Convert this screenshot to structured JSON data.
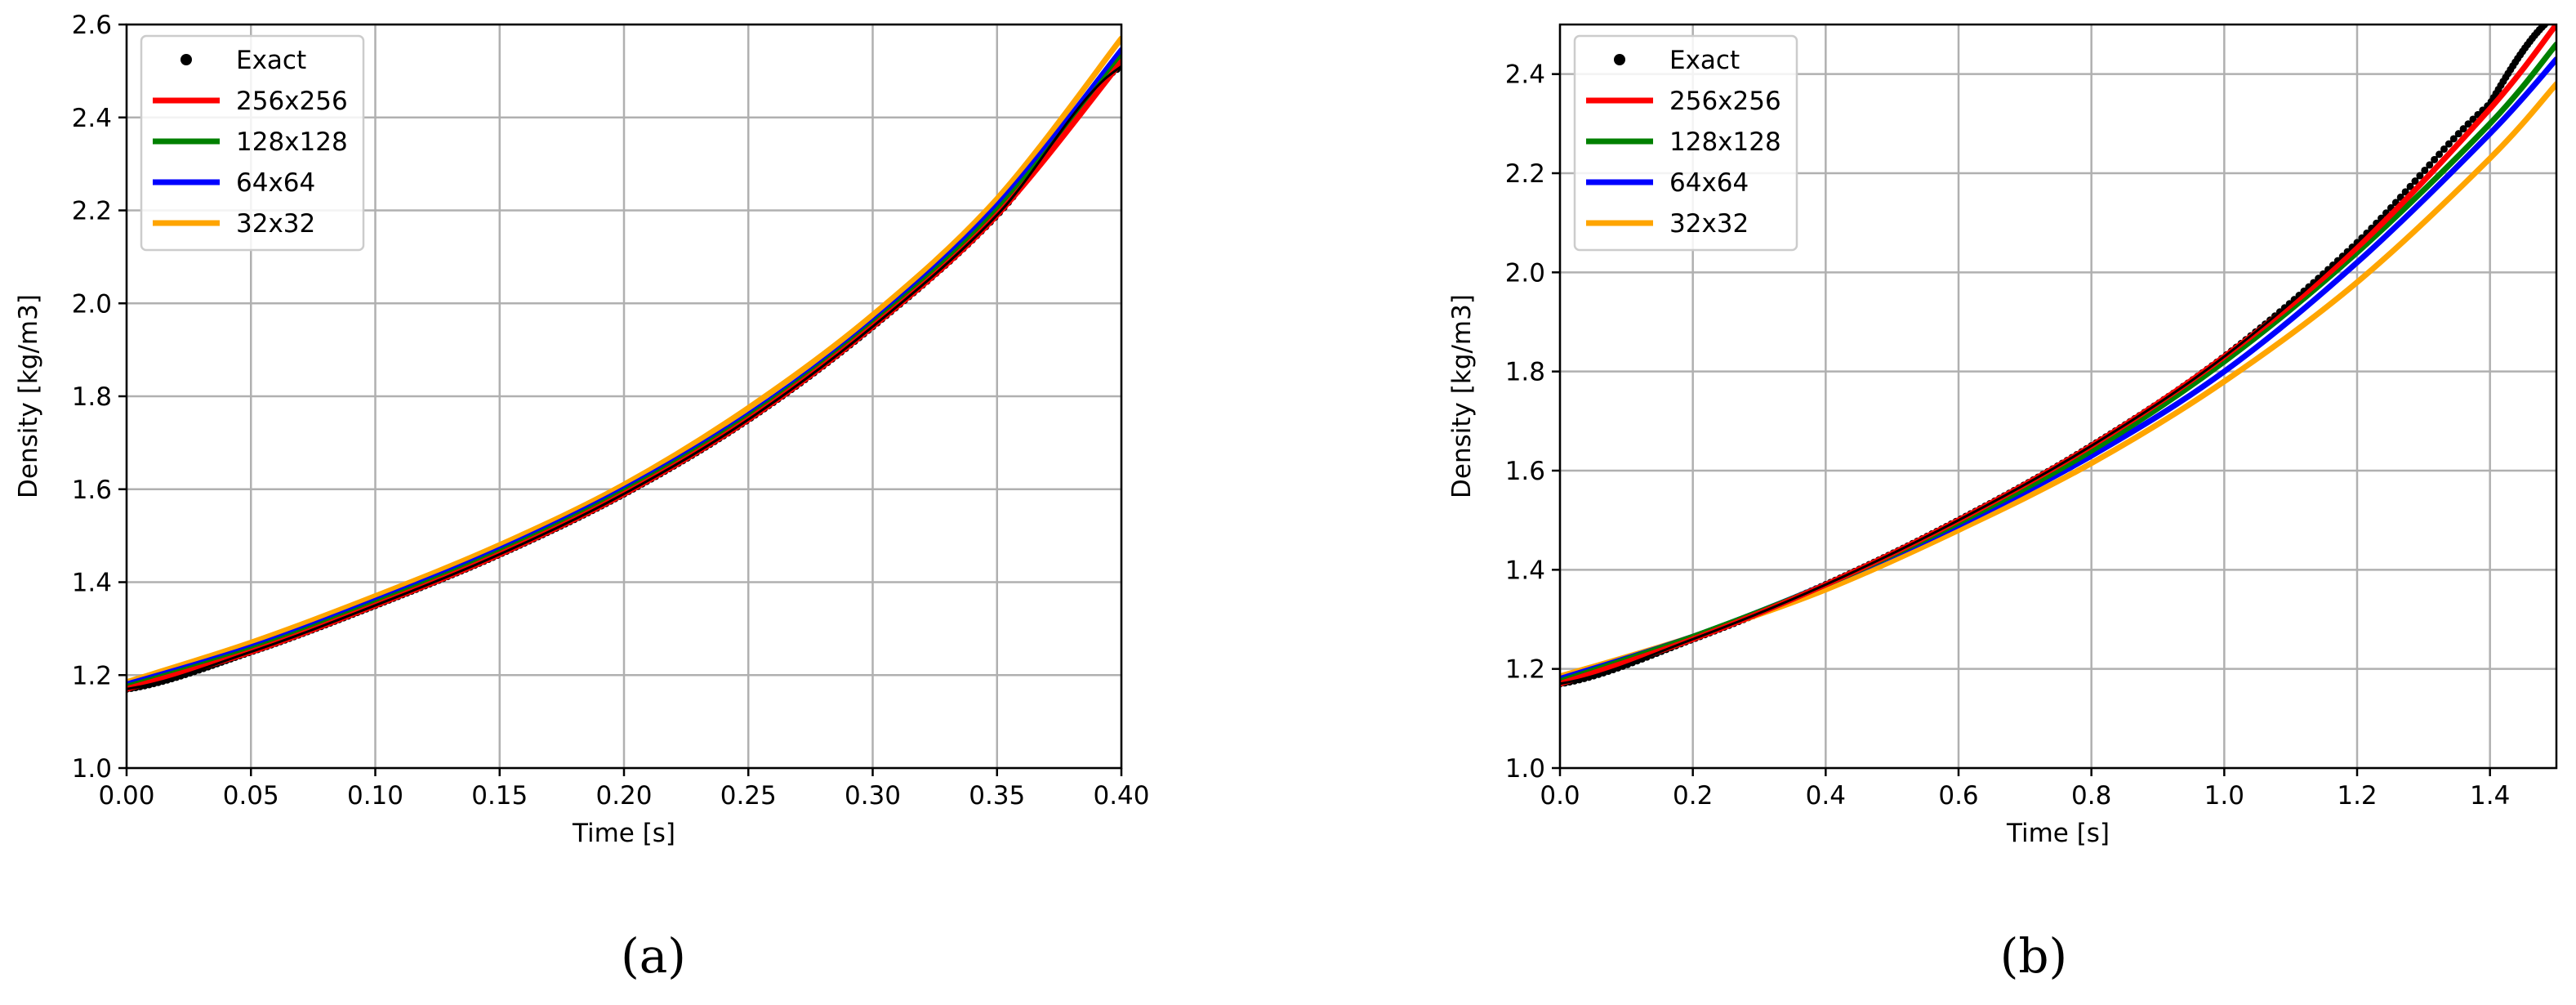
{
  "colors": {
    "exact": "#000000",
    "256x256": "#ff0000",
    "128x128": "#008000",
    "64x64": "#0000ff",
    "32x32": "#ffa500",
    "grid": "#b0b0b0"
  },
  "chart_data": [
    {
      "type": "line",
      "caption": "(a)",
      "xlabel": "Time [s]",
      "ylabel": "Density [kg/m3]",
      "xlim": [
        0,
        0.4
      ],
      "ylim": [
        1.0,
        2.6
      ],
      "xticks": [
        0.0,
        0.05,
        0.1,
        0.15,
        0.2,
        0.25,
        0.3,
        0.35,
        0.4
      ],
      "xtick_labels": [
        "0.00",
        "0.05",
        "0.10",
        "0.15",
        "0.20",
        "0.25",
        "0.30",
        "0.35",
        "0.40"
      ],
      "yticks": [
        1.0,
        1.2,
        1.4,
        1.6,
        1.8,
        2.0,
        2.2,
        2.4,
        2.6
      ],
      "ytick_labels": [
        "1.0",
        "1.2",
        "1.4",
        "1.6",
        "1.8",
        "2.0",
        "2.2",
        "2.4",
        "2.6"
      ],
      "grid": true,
      "legend_position": "top-left",
      "legend": [
        "Exact",
        "256x256",
        "128x128",
        "64x64",
        "32x32"
      ],
      "series": [
        {
          "name": "Exact",
          "style": "points",
          "x": [
            0,
            0.05,
            0.1,
            0.15,
            0.2,
            0.25,
            0.3,
            0.35,
            0.4
          ],
          "y": [
            1.17,
            1.25,
            1.35,
            1.46,
            1.59,
            1.75,
            1.95,
            2.19,
            2.51
          ]
        },
        {
          "name": "256x256",
          "style": "line",
          "x": [
            0,
            0.05,
            0.1,
            0.15,
            0.2,
            0.25,
            0.3,
            0.35,
            0.4
          ],
          "y": [
            1.17,
            1.25,
            1.35,
            1.46,
            1.59,
            1.75,
            1.95,
            2.19,
            2.52
          ]
        },
        {
          "name": "128x128",
          "style": "line",
          "x": [
            0,
            0.05,
            0.1,
            0.15,
            0.2,
            0.25,
            0.3,
            0.35,
            0.4
          ],
          "y": [
            1.175,
            1.255,
            1.355,
            1.465,
            1.595,
            1.755,
            1.955,
            2.2,
            2.53
          ]
        },
        {
          "name": "64x64",
          "style": "line",
          "x": [
            0,
            0.05,
            0.1,
            0.15,
            0.2,
            0.25,
            0.3,
            0.35,
            0.4
          ],
          "y": [
            1.18,
            1.26,
            1.36,
            1.47,
            1.6,
            1.76,
            1.96,
            2.21,
            2.545
          ]
        },
        {
          "name": "32x32",
          "style": "line",
          "x": [
            0,
            0.05,
            0.1,
            0.15,
            0.2,
            0.25,
            0.3,
            0.35,
            0.4
          ],
          "y": [
            1.185,
            1.27,
            1.37,
            1.48,
            1.61,
            1.775,
            1.975,
            2.225,
            2.57
          ]
        }
      ]
    },
    {
      "type": "line",
      "caption": "(b)",
      "xlabel": "Time [s]",
      "ylabel": "Density [kg/m3]",
      "xlim": [
        0,
        1.5
      ],
      "ylim": [
        1.0,
        2.5
      ],
      "xticks": [
        0.0,
        0.2,
        0.4,
        0.6,
        0.8,
        1.0,
        1.2,
        1.4
      ],
      "xtick_labels": [
        "0.0",
        "0.2",
        "0.4",
        "0.6",
        "0.8",
        "1.0",
        "1.2",
        "1.4"
      ],
      "yticks": [
        1.0,
        1.2,
        1.4,
        1.6,
        1.8,
        2.0,
        2.2,
        2.4
      ],
      "ytick_labels": [
        "1.0",
        "1.2",
        "1.4",
        "1.6",
        "1.8",
        "2.0",
        "2.2",
        "2.4"
      ],
      "grid": true,
      "legend_position": "top-left",
      "legend": [
        "Exact",
        "256x256",
        "128x128",
        "64x64",
        "32x32"
      ],
      "series": [
        {
          "name": "Exact",
          "style": "points",
          "x": [
            0,
            0.2,
            0.4,
            0.6,
            0.8,
            1.0,
            1.2,
            1.4,
            1.5
          ],
          "y": [
            1.17,
            1.26,
            1.37,
            1.5,
            1.65,
            1.83,
            2.06,
            2.34,
            2.52
          ]
        },
        {
          "name": "256x256",
          "style": "line",
          "x": [
            0,
            0.2,
            0.4,
            0.6,
            0.8,
            1.0,
            1.2,
            1.4,
            1.5
          ],
          "y": [
            1.17,
            1.26,
            1.37,
            1.5,
            1.65,
            1.83,
            2.05,
            2.33,
            2.5
          ]
        },
        {
          "name": "128x128",
          "style": "line",
          "x": [
            0,
            0.2,
            0.4,
            0.6,
            0.8,
            1.0,
            1.2,
            1.4,
            1.5
          ],
          "y": [
            1.175,
            1.265,
            1.37,
            1.495,
            1.64,
            1.82,
            2.04,
            2.3,
            2.46
          ]
        },
        {
          "name": "64x64",
          "style": "line",
          "x": [
            0,
            0.2,
            0.4,
            0.6,
            0.8,
            1.0,
            1.2,
            1.4,
            1.5
          ],
          "y": [
            1.18,
            1.265,
            1.37,
            1.49,
            1.63,
            1.8,
            2.02,
            2.28,
            2.43
          ]
        },
        {
          "name": "32x32",
          "style": "line",
          "x": [
            0,
            0.2,
            0.4,
            0.6,
            0.8,
            1.0,
            1.2,
            1.4,
            1.5
          ],
          "y": [
            1.185,
            1.265,
            1.36,
            1.48,
            1.615,
            1.78,
            1.98,
            2.23,
            2.38
          ]
        }
      ]
    }
  ]
}
